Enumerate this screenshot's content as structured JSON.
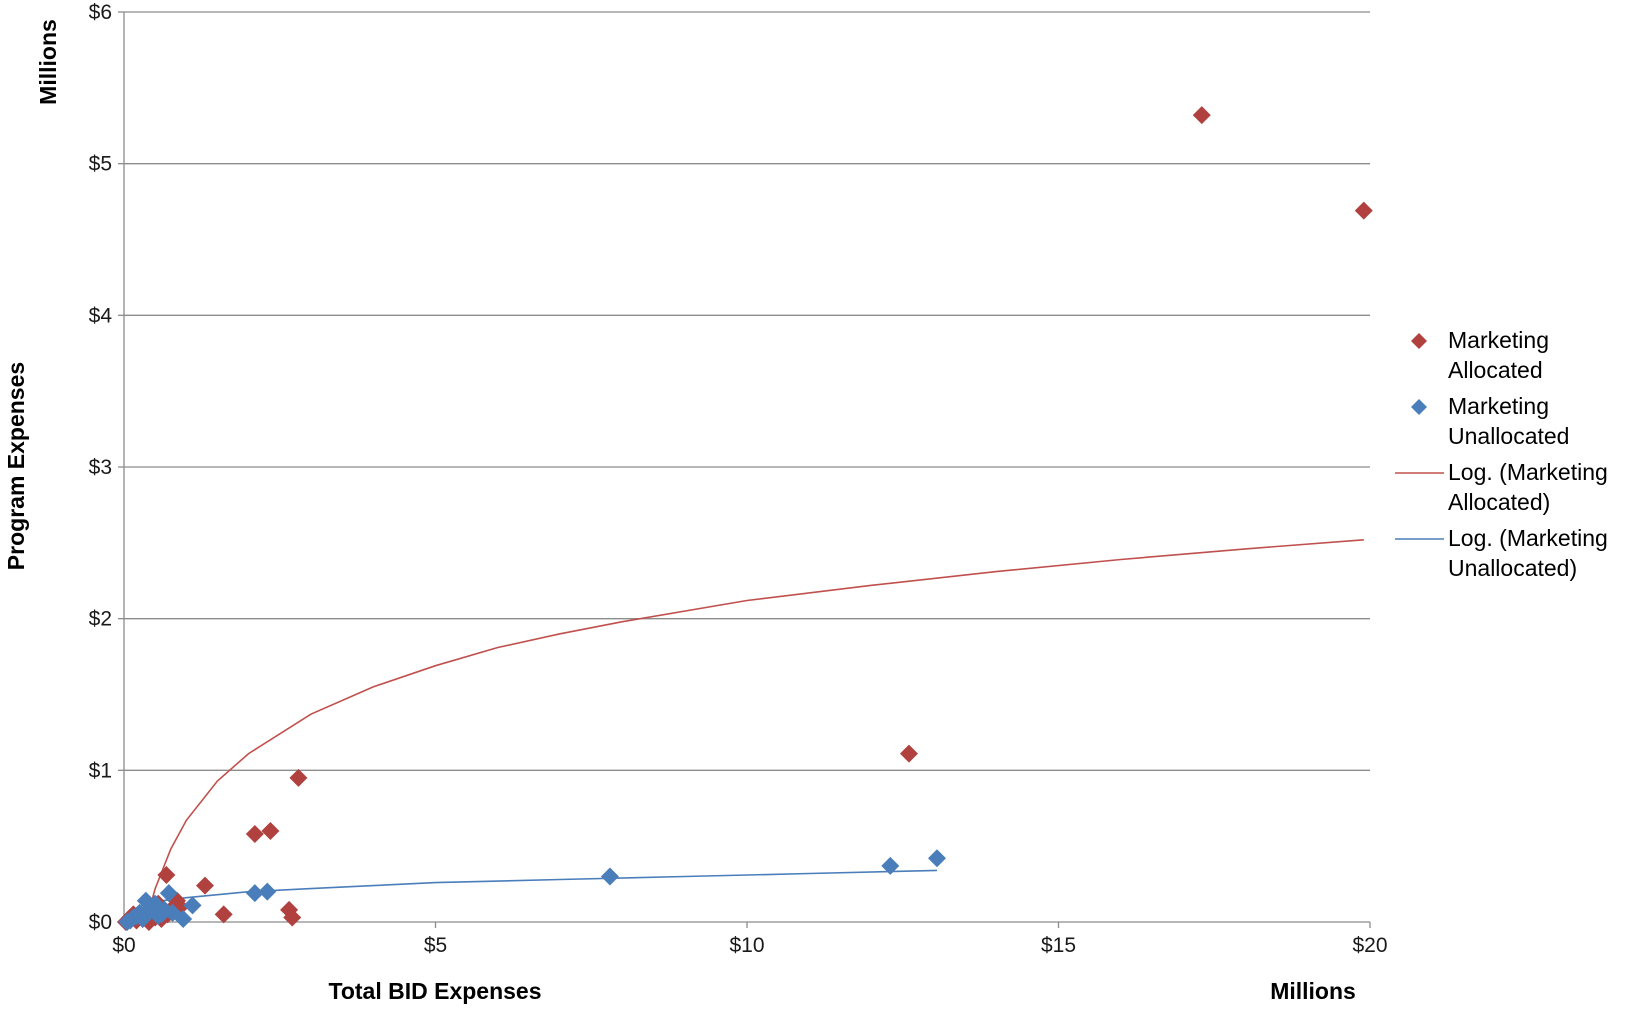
{
  "chart_data": {
    "type": "scatter",
    "title": "",
    "xlabel": "Total BID Expenses",
    "ylabel": "Program Expenses",
    "x_unit_label": "Millions",
    "y_unit_label": "Millions",
    "xlim": [
      0,
      20
    ],
    "ylim": [
      0,
      6
    ],
    "x_ticks": [
      {
        "value": 0,
        "label": "$0"
      },
      {
        "value": 5,
        "label": "$5"
      },
      {
        "value": 10,
        "label": "$10"
      },
      {
        "value": 15,
        "label": "$15"
      },
      {
        "value": 20,
        "label": "$20"
      }
    ],
    "y_ticks": [
      {
        "value": 0,
        "label": "$0"
      },
      {
        "value": 1,
        "label": "$1"
      },
      {
        "value": 2,
        "label": "$2"
      },
      {
        "value": 3,
        "label": "$3"
      },
      {
        "value": 4,
        "label": "$4"
      },
      {
        "value": 5,
        "label": "$5"
      },
      {
        "value": 6,
        "label": "$6"
      }
    ],
    "grid": "horizontal",
    "legend_position": "right",
    "series": [
      {
        "name": "Marketing Allocated",
        "color": "#b0413e",
        "marker": "diamond",
        "points": [
          {
            "x": 0.03,
            "y": 0.0
          },
          {
            "x": 0.1,
            "y": 0.03
          },
          {
            "x": 0.15,
            "y": 0.05
          },
          {
            "x": 0.2,
            "y": 0.01
          },
          {
            "x": 0.3,
            "y": 0.02
          },
          {
            "x": 0.35,
            "y": 0.06
          },
          {
            "x": 0.4,
            "y": 0.0
          },
          {
            "x": 0.45,
            "y": 0.08
          },
          {
            "x": 0.5,
            "y": 0.03
          },
          {
            "x": 0.55,
            "y": 0.12
          },
          {
            "x": 0.6,
            "y": 0.02
          },
          {
            "x": 0.68,
            "y": 0.31
          },
          {
            "x": 0.7,
            "y": 0.05
          },
          {
            "x": 0.8,
            "y": 0.1
          },
          {
            "x": 0.85,
            "y": 0.14
          },
          {
            "x": 0.9,
            "y": 0.1
          },
          {
            "x": 1.3,
            "y": 0.24
          },
          {
            "x": 1.6,
            "y": 0.05
          },
          {
            "x": 2.1,
            "y": 0.58
          },
          {
            "x": 2.35,
            "y": 0.6
          },
          {
            "x": 2.65,
            "y": 0.08
          },
          {
            "x": 2.7,
            "y": 0.03
          },
          {
            "x": 2.8,
            "y": 0.95
          },
          {
            "x": 12.6,
            "y": 1.11
          },
          {
            "x": 17.3,
            "y": 5.32
          },
          {
            "x": 19.9,
            "y": 4.69
          }
        ]
      },
      {
        "name": "Marketing Unallocated",
        "color": "#4a7ebb",
        "marker": "diamond",
        "points": [
          {
            "x": 0.05,
            "y": 0.0
          },
          {
            "x": 0.1,
            "y": 0.01
          },
          {
            "x": 0.15,
            "y": 0.03
          },
          {
            "x": 0.2,
            "y": 0.04
          },
          {
            "x": 0.25,
            "y": 0.06
          },
          {
            "x": 0.3,
            "y": 0.02
          },
          {
            "x": 0.35,
            "y": 0.14
          },
          {
            "x": 0.4,
            "y": 0.07
          },
          {
            "x": 0.45,
            "y": 0.09
          },
          {
            "x": 0.5,
            "y": 0.12
          },
          {
            "x": 0.55,
            "y": 0.04
          },
          {
            "x": 0.6,
            "y": 0.05
          },
          {
            "x": 0.65,
            "y": 0.08
          },
          {
            "x": 0.72,
            "y": 0.19
          },
          {
            "x": 0.78,
            "y": 0.06
          },
          {
            "x": 0.95,
            "y": 0.02
          },
          {
            "x": 1.1,
            "y": 0.11
          },
          {
            "x": 2.1,
            "y": 0.19
          },
          {
            "x": 2.3,
            "y": 0.2
          },
          {
            "x": 7.8,
            "y": 0.3
          },
          {
            "x": 12.3,
            "y": 0.37
          },
          {
            "x": 13.05,
            "y": 0.42
          }
        ]
      }
    ],
    "trendlines": [
      {
        "name": "Log. (Marketing Allocated)",
        "color": "#c0504d",
        "points": [
          {
            "x": 0.35,
            "y": 0.0
          },
          {
            "x": 0.5,
            "y": 0.22
          },
          {
            "x": 0.75,
            "y": 0.48
          },
          {
            "x": 1.0,
            "y": 0.67
          },
          {
            "x": 1.5,
            "y": 0.93
          },
          {
            "x": 2.0,
            "y": 1.11
          },
          {
            "x": 3.0,
            "y": 1.37
          },
          {
            "x": 4.0,
            "y": 1.55
          },
          {
            "x": 5.0,
            "y": 1.69
          },
          {
            "x": 6.0,
            "y": 1.81
          },
          {
            "x": 7.0,
            "y": 1.9
          },
          {
            "x": 8.0,
            "y": 1.98
          },
          {
            "x": 10.0,
            "y": 2.12
          },
          {
            "x": 12.0,
            "y": 2.22
          },
          {
            "x": 14.0,
            "y": 2.31
          },
          {
            "x": 16.0,
            "y": 2.39
          },
          {
            "x": 18.0,
            "y": 2.46
          },
          {
            "x": 19.9,
            "y": 2.52
          }
        ]
      },
      {
        "name": "Log. (Marketing Unallocated)",
        "color": "#4a7ebb",
        "points": [
          {
            "x": 0.05,
            "y": 0.05
          },
          {
            "x": 0.1,
            "y": 0.07
          },
          {
            "x": 0.3,
            "y": 0.11
          },
          {
            "x": 0.6,
            "y": 0.14
          },
          {
            "x": 1.0,
            "y": 0.16
          },
          {
            "x": 2.0,
            "y": 0.2
          },
          {
            "x": 3.0,
            "y": 0.22
          },
          {
            "x": 4.0,
            "y": 0.24
          },
          {
            "x": 5.0,
            "y": 0.26
          },
          {
            "x": 7.0,
            "y": 0.28
          },
          {
            "x": 9.0,
            "y": 0.3
          },
          {
            "x": 11.0,
            "y": 0.32
          },
          {
            "x": 13.05,
            "y": 0.34
          }
        ]
      }
    ],
    "legend": [
      {
        "label_lines": [
          "Marketing",
          "Allocated"
        ],
        "kind": "marker",
        "color": "#b0413e"
      },
      {
        "label_lines": [
          "Marketing",
          "Unallocated"
        ],
        "kind": "marker",
        "color": "#4a7ebb"
      },
      {
        "label_lines": [
          "Log. (Marketing",
          "Allocated)"
        ],
        "kind": "line",
        "color": "#c0504d"
      },
      {
        "label_lines": [
          "Log. (Marketing",
          "Unallocated)"
        ],
        "kind": "line",
        "color": "#4a7ebb"
      }
    ]
  }
}
